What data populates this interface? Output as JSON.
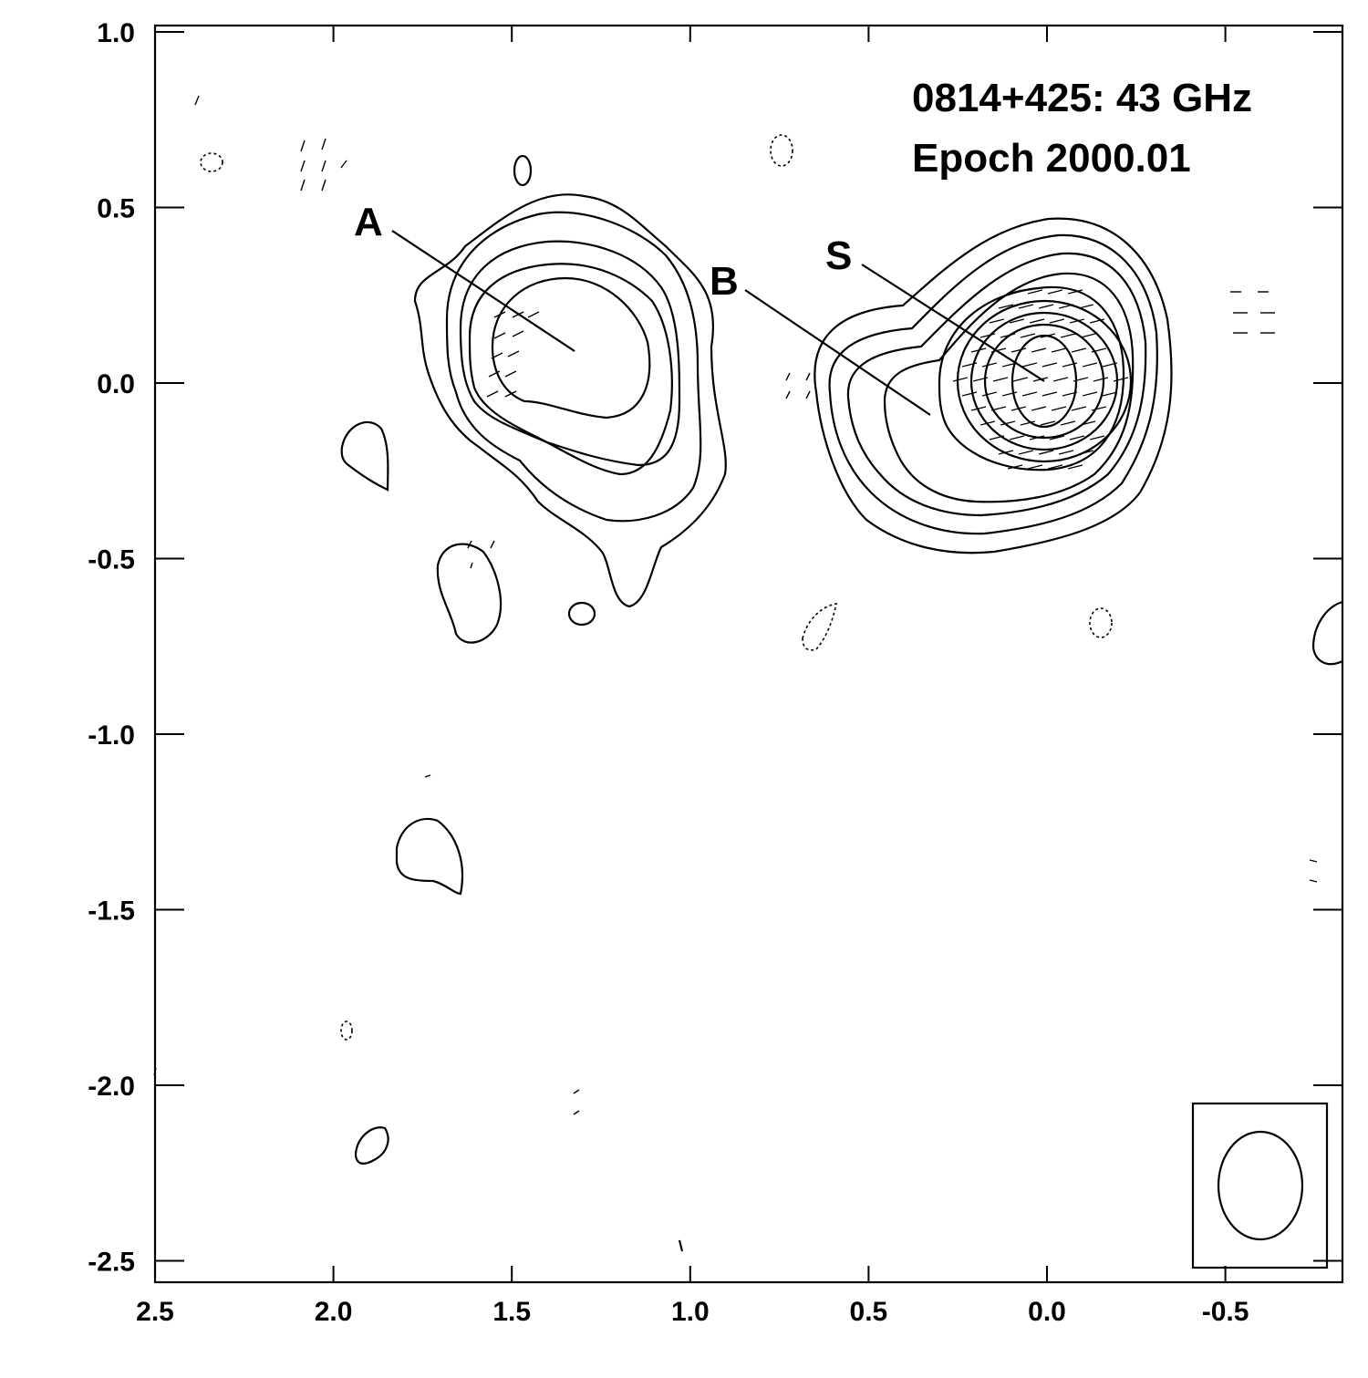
{
  "chart_data": {
    "type": "contour",
    "title_lines": [
      "0814+425: 43 GHz",
      "Epoch 2000.01"
    ],
    "xlabel": "",
    "ylabel": "",
    "xlim": [
      2.5,
      -0.85
    ],
    "ylim": [
      -2.56,
      1.02
    ],
    "x_ticks": [
      2.5,
      2.0,
      1.5,
      1.0,
      0.5,
      0.0,
      -0.5
    ],
    "x_tick_labels": [
      "2.5",
      "2.0",
      "1.5",
      "1.0",
      "0.5",
      "0.0",
      "-0.5"
    ],
    "y_ticks": [
      1.0,
      0.5,
      0.0,
      -0.5,
      -1.0,
      -1.5,
      -2.0,
      -2.5
    ],
    "y_tick_labels": [
      "1.0",
      "0.5",
      "0.0",
      "-0.5",
      "-1.0",
      "-1.5",
      "-2.0",
      "-2.5"
    ],
    "components": [
      {
        "label": "A",
        "x": 1.33,
        "y": 0.09
      },
      {
        "label": "B",
        "x": 0.33,
        "y": -0.09
      },
      {
        "label": "S",
        "x": 0.02,
        "y": 0.0
      }
    ],
    "contour_groups": [
      {
        "name": "component-A",
        "cx": 1.34,
        "cy": 0.06,
        "rings": [
          [
            0.24,
            0.16
          ],
          [
            0.34,
            0.26
          ],
          [
            0.42,
            0.33
          ],
          [
            0.5,
            0.4
          ],
          [
            0.58,
            0.48
          ]
        ]
      },
      {
        "name": "core-S-B",
        "cx": 0.1,
        "cy": -0.02,
        "rings": [
          [
            0.1,
            0.13
          ],
          [
            0.16,
            0.19
          ],
          [
            0.21,
            0.24
          ],
          [
            0.26,
            0.28
          ],
          [
            0.31,
            0.32
          ],
          [
            0.38,
            0.36
          ],
          [
            0.46,
            0.4
          ],
          [
            0.56,
            0.44
          ],
          [
            0.66,
            0.48
          ]
        ]
      }
    ],
    "grid": false,
    "beam": {
      "major": 0.31,
      "minor": 0.24
    }
  }
}
